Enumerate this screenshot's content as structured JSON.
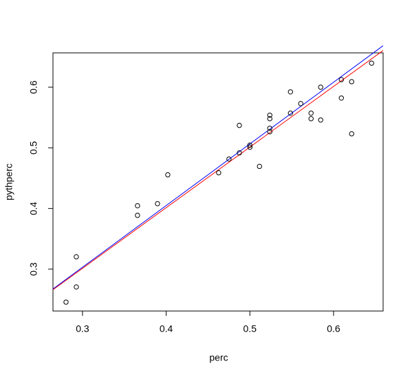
{
  "chart_data": {
    "type": "scatter",
    "xlabel": "perc",
    "ylabel": "pythperc",
    "x": [
      0.2803,
      0.2926,
      0.2926,
      0.3657,
      0.3657,
      0.3896,
      0.4019,
      0.4627,
      0.475,
      0.4874,
      0.4874,
      0.5,
      0.5,
      0.5115,
      0.5238,
      0.5238,
      0.5238,
      0.5238,
      0.5485,
      0.5485,
      0.5608,
      0.5731,
      0.5731,
      0.5846,
      0.5846,
      0.6093,
      0.6093,
      0.6216,
      0.6216,
      0.6454
    ],
    "y": [
      0.2456,
      0.2706,
      0.3204,
      0.4045,
      0.3887,
      0.4079,
      0.4555,
      0.4589,
      0.4815,
      0.4917,
      0.537,
      0.5045,
      0.5011,
      0.4694,
      0.5538,
      0.5481,
      0.5323,
      0.5266,
      0.5923,
      0.5572,
      0.573,
      0.5572,
      0.5481,
      0.6,
      0.5459,
      0.6125,
      0.5821,
      0.6091,
      0.5232,
      0.6396
    ],
    "color": "#000000",
    "lines": [
      {
        "color": "#0000ff",
        "intercept": -0.002,
        "slope": 1.017
      },
      {
        "color": "#ff0000",
        "intercept": 0.0013,
        "slope": 1.0
      }
    ],
    "xlim": [
      0.2647,
      0.6592
    ],
    "ylim": [
      0.2309,
      0.6566
    ],
    "xticks": [
      0.3,
      0.4,
      0.5,
      0.6
    ],
    "yticks": [
      0.3,
      0.4,
      0.5,
      0.6
    ]
  }
}
